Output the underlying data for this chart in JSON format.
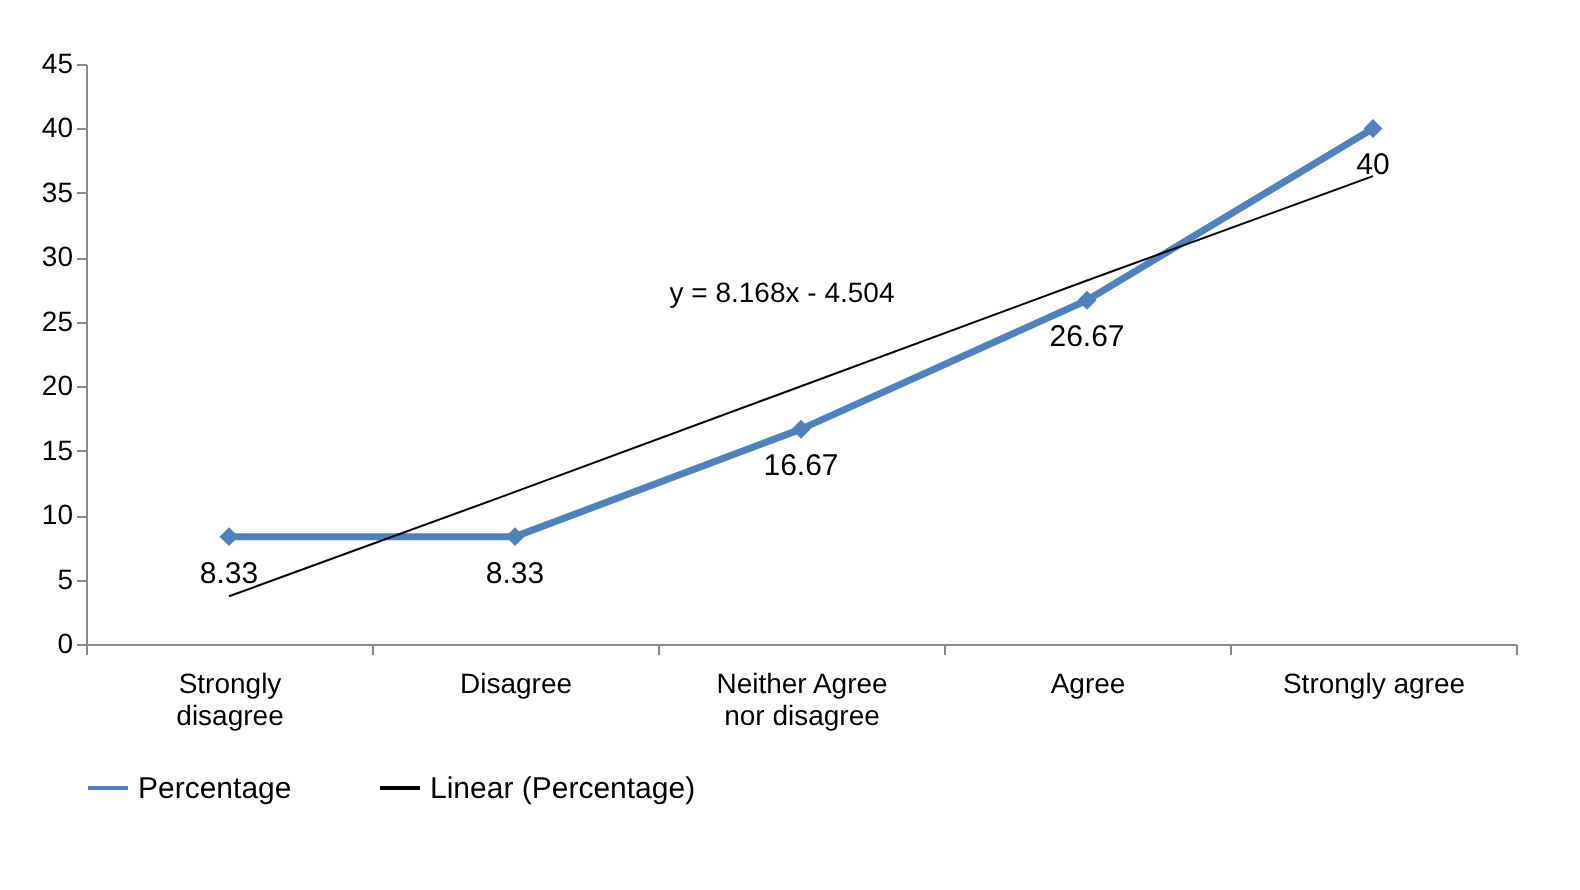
{
  "chart_data": {
    "type": "line",
    "categories": [
      "Strongly disagree",
      "Disagree",
      "Neither Agree nor disagree",
      "Agree",
      "Strongly agree"
    ],
    "series": [
      {
        "name": "Percentage",
        "color": "#4f81bd",
        "values": [
          8.33,
          8.33,
          16.67,
          26.67,
          40
        ],
        "value_labels": [
          "8.33",
          "8.33",
          "16.67",
          "26.67",
          "40"
        ],
        "marker": "diamond"
      },
      {
        "name": "Linear (Percentage)",
        "type": "line",
        "color": "#000000",
        "x": [
          "Strongly disagree",
          "Disagree",
          "Neither Agree nor disagree",
          "Agree",
          "Strongly agree"
        ],
        "values": [
          3.7,
          11.8,
          20.0,
          28.2,
          36.3
        ],
        "marker": "none"
      }
    ],
    "ylim": [
      0,
      45
    ],
    "yticks": [
      0,
      5,
      10,
      15,
      20,
      25,
      30,
      35,
      40,
      45
    ],
    "legend": "bottom",
    "grid": false,
    "annotations": [
      "y = 8.168x - 4.504"
    ]
  }
}
